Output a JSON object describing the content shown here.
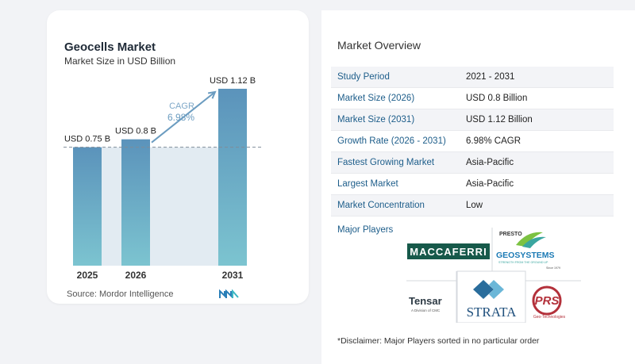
{
  "chart_data": {
    "type": "bar",
    "title": "Geocells Market",
    "subtitle": "Market Size in USD Billion",
    "categories": [
      "2025",
      "2026",
      "2031"
    ],
    "values": [
      0.75,
      0.8,
      1.12
    ],
    "value_labels": [
      "USD 0.75 B",
      "USD 0.8 B",
      "USD 1.12 B"
    ],
    "ylim": [
      0,
      1.2
    ],
    "cagr_label": "CAGR",
    "cagr_value": "6.98%",
    "colors": {
      "bar_top": "#5b93bb",
      "bar_bottom": "#7cc4d0",
      "band": "#e2ebf2",
      "arrow": "#6b9cc0",
      "dashed": "#7f8c99"
    }
  },
  "source": "Source:  Mordor Intelligence",
  "overview": {
    "title": "Market Overview",
    "rows": [
      {
        "label": "Study Period",
        "value": "2021 - 2031"
      },
      {
        "label": "Market Size (2026)",
        "value": "USD 0.8 Billion"
      },
      {
        "label": "Market Size (2031)",
        "value": "USD 1.12 Billion"
      },
      {
        "label": "Growth Rate (2026 - 2031)",
        "value": "6.98% CAGR"
      },
      {
        "label": "Fastest Growing Market",
        "value": "Asia-Pacific"
      },
      {
        "label": "Largest Market",
        "value": "Asia-Pacific"
      },
      {
        "label": "Market Concentration",
        "value": "Low"
      }
    ],
    "players_label": "Major Players",
    "players": [
      {
        "name": "MACCAFERRI"
      },
      {
        "name": "PRESTO",
        "name2": "GEOSYSTEMS",
        "tagline": "STRENGTH FROM THE GROUND UP",
        "since": "Since 1979"
      },
      {
        "name": "Tensar",
        "tagline": "A Division of CMC"
      },
      {
        "name": "STRATA"
      },
      {
        "name": "PRS",
        "tagline": "Geo-Technologies"
      }
    ],
    "disclaimer": "*Disclaimer: Major Players sorted in no particular order"
  }
}
